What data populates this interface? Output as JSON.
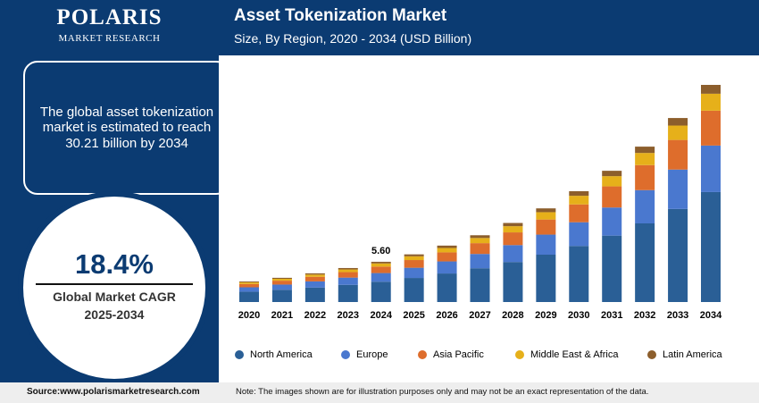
{
  "logo": {
    "name": "POLARIS",
    "tagline": "MARKET RESEARCH"
  },
  "summary_text": "The global asset tokenization market is estimated to reach 30.21 billion by 2034",
  "cagr": {
    "value": "18.4%",
    "label": "Global Market CAGR",
    "period": "2025-2034"
  },
  "footer": {
    "source": "Source:www.polarismarketresearch.com",
    "note": "Note: The images shown are for illustration purposes only and may not be an exact representation of the data."
  },
  "chart_data": {
    "type": "stacked-bar",
    "title": "Asset Tokenization Market",
    "subtitle": "Size, By Region, 2020 - 2034 (USD Billion)",
    "categories": [
      "2020",
      "2021",
      "2022",
      "2023",
      "2024",
      "2025",
      "2026",
      "2027",
      "2028",
      "2029",
      "2030",
      "2031",
      "2032",
      "2033",
      "2034"
    ],
    "series": [
      {
        "name": "North America",
        "color": "#2a5f96",
        "values": [
          1.44,
          1.71,
          2.02,
          2.39,
          2.83,
          3.35,
          3.97,
          4.7,
          5.57,
          6.59,
          7.8,
          9.24,
          10.94,
          12.95,
          15.3
        ]
      },
      {
        "name": "Europe",
        "color": "#4a78cf",
        "values": [
          0.61,
          0.72,
          0.85,
          1.01,
          1.2,
          1.42,
          1.68,
          1.99,
          2.35,
          2.79,
          3.3,
          3.91,
          4.63,
          5.48,
          6.47
        ]
      },
      {
        "name": "Asia Pacific",
        "color": "#de6d2c",
        "values": [
          0.46,
          0.54,
          0.64,
          0.76,
          0.9,
          1.07,
          1.26,
          1.5,
          1.77,
          2.1,
          2.48,
          2.94,
          3.48,
          4.12,
          4.85
        ]
      },
      {
        "name": "Middle East & Africa",
        "color": "#e6b01a",
        "values": [
          0.22,
          0.26,
          0.31,
          0.37,
          0.44,
          0.52,
          0.61,
          0.72,
          0.86,
          1.02,
          1.2,
          1.42,
          1.69,
          2.0,
          2.36
        ]
      },
      {
        "name": "Latin America",
        "color": "#8c5e2c",
        "values": [
          0.12,
          0.14,
          0.17,
          0.2,
          0.23,
          0.27,
          0.33,
          0.38,
          0.45,
          0.53,
          0.64,
          0.75,
          0.88,
          1.05,
          1.23
        ]
      }
    ],
    "annotation": {
      "x": "2024",
      "value": 5.6,
      "label": "5.60"
    }
  }
}
